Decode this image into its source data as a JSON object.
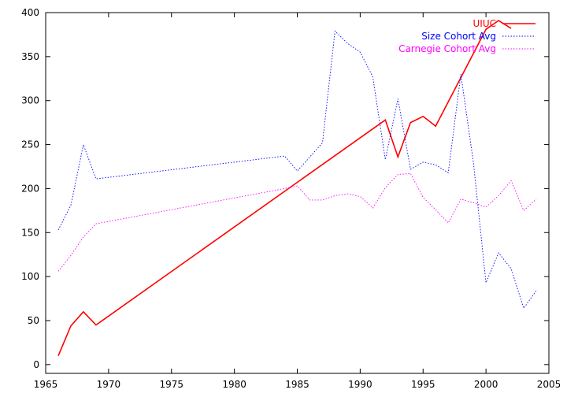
{
  "chart_data": {
    "type": "line",
    "title": "",
    "xlabel": "",
    "ylabel": "",
    "xlim": [
      1965,
      2005
    ],
    "ylim": [
      -10,
      400
    ],
    "xticks": [
      1965,
      1970,
      1975,
      1980,
      1985,
      1990,
      1995,
      2000,
      2005
    ],
    "yticks": [
      0,
      50,
      100,
      150,
      200,
      250,
      300,
      350,
      400
    ],
    "grid": false,
    "legend_position": "top-right",
    "series": [
      {
        "name": "UIUC",
        "color": "#ff0000",
        "style": "solid",
        "x": [
          1966,
          1967,
          1968,
          1969,
          1992,
          1993,
          1994,
          1995,
          1996,
          2000,
          2001,
          2002
        ],
        "y": [
          10,
          44,
          60,
          45,
          278,
          236,
          275,
          282,
          271,
          381,
          391,
          382
        ]
      },
      {
        "name": "Size Cohort Avg",
        "color": "#0000ff",
        "style": "dotted",
        "x": [
          1966,
          1967,
          1968,
          1969,
          1984,
          1985,
          1986,
          1987,
          1988,
          1989,
          1990,
          1991,
          1992,
          1993,
          1994,
          1995,
          1996,
          1997,
          1998,
          1999,
          2000,
          2001,
          2002,
          2003,
          2004
        ],
        "y": [
          153,
          181,
          250,
          211,
          237,
          220,
          236,
          252,
          379,
          365,
          355,
          327,
          233,
          302,
          222,
          230,
          227,
          218,
          330,
          230,
          93,
          127,
          109,
          64,
          84
        ]
      },
      {
        "name": "Carnegie Cohort Avg",
        "color": "#ff00ff",
        "style": "dotted",
        "x": [
          1966,
          1967,
          1968,
          1969,
          1984,
          1985,
          1986,
          1987,
          1988,
          1989,
          1990,
          1991,
          1992,
          1993,
          1994,
          1995,
          1996,
          1997,
          1998,
          1999,
          2000,
          2001,
          2002,
          2003,
          2004
        ],
        "y": [
          106,
          124,
          145,
          160,
          200,
          203,
          187,
          187,
          192,
          194,
          191,
          178,
          201,
          216,
          217,
          190,
          176,
          161,
          188,
          184,
          179,
          192,
          209,
          175,
          188
        ]
      }
    ]
  }
}
